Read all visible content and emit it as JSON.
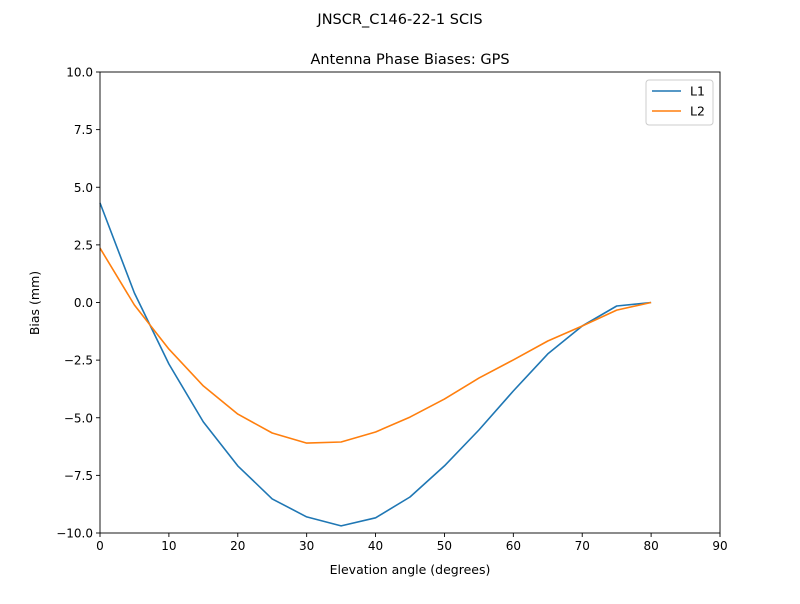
{
  "chart_data": {
    "type": "line",
    "suptitle": "JNSCR_C146-22-1 SCIS",
    "title": "Antenna Phase Biases: GPS",
    "xlabel": "Elevation angle (degrees)",
    "ylabel": "Bias (mm)",
    "xlim": [
      0,
      90
    ],
    "ylim": [
      -10,
      10
    ],
    "xticks": [
      0,
      10,
      20,
      30,
      40,
      50,
      60,
      70,
      80,
      90
    ],
    "xtick_labels": [
      "0",
      "10",
      "20",
      "30",
      "40",
      "50",
      "60",
      "70",
      "80",
      "90"
    ],
    "yticks": [
      10,
      7.5,
      5,
      2.5,
      0,
      -2.5,
      -5,
      -7.5,
      -10
    ],
    "ytick_labels": [
      "10.0",
      "7.5",
      "5.0",
      "2.5",
      "0.0",
      "−2.5",
      "−5.0",
      "−7.5",
      "−10.0"
    ],
    "grid": false,
    "legend_position": "top-right",
    "x": [
      0,
      5,
      10,
      15,
      20,
      25,
      30,
      35,
      40,
      45,
      50,
      55,
      60,
      65,
      70,
      75,
      80
    ],
    "series": [
      {
        "name": "L1",
        "color": "#1f77b4",
        "values": [
          4.32,
          0.41,
          -2.67,
          -5.18,
          -7.09,
          -8.52,
          -9.3,
          -9.69,
          -9.34,
          -8.44,
          -7.09,
          -5.53,
          -3.84,
          -2.23,
          -1.02,
          -0.15,
          0.0
        ]
      },
      {
        "name": "L2",
        "color": "#ff7f0e",
        "values": [
          2.36,
          -0.11,
          -2.02,
          -3.62,
          -4.84,
          -5.66,
          -6.1,
          -6.05,
          -5.62,
          -4.97,
          -4.19,
          -3.28,
          -2.49,
          -1.67,
          -1.02,
          -0.33,
          0.0
        ]
      }
    ]
  }
}
